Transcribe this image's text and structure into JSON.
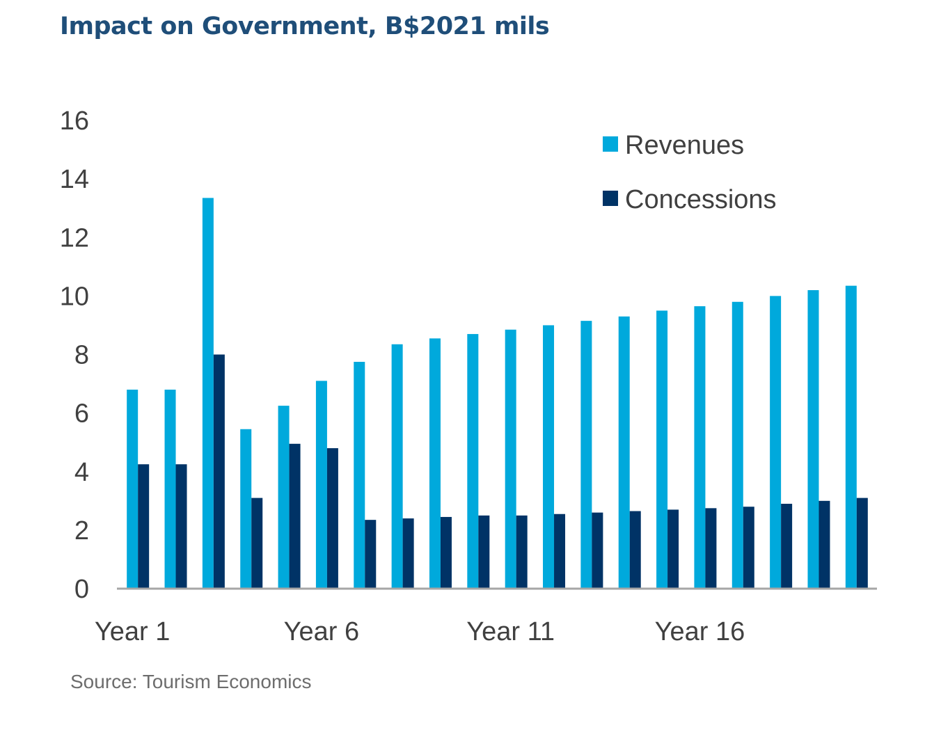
{
  "chart_data": {
    "type": "bar",
    "title": "Impact on Government, B$2021 mils",
    "source": "Source: Tourism Economics",
    "xlabel": "",
    "ylabel": "",
    "ylim": [
      0,
      16
    ],
    "yticks": [
      0,
      2,
      4,
      6,
      8,
      10,
      12,
      14,
      16
    ],
    "ytick_labels": [
      "0",
      "2",
      "4",
      "6",
      "8",
      "10",
      "12",
      "14",
      "16"
    ],
    "grid": false,
    "legend_position": "top-right",
    "categories": [
      "Year 1",
      "Year 2",
      "Year 3",
      "Year 4",
      "Year 5",
      "Year 6",
      "Year 7",
      "Year 8",
      "Year 9",
      "Year 10",
      "Year 11",
      "Year 12",
      "Year 13",
      "Year 14",
      "Year 15",
      "Year 16",
      "Year 17",
      "Year 18",
      "Year 19",
      "Year 20"
    ],
    "xtick_labels": [
      {
        "index": 0,
        "label": "Year 1"
      },
      {
        "index": 5,
        "label": "Year 6"
      },
      {
        "index": 10,
        "label": "Year 11"
      },
      {
        "index": 15,
        "label": "Year 16"
      }
    ],
    "series": [
      {
        "name": "Revenues",
        "color": "#00a9dc",
        "values": [
          6.8,
          6.8,
          13.35,
          5.45,
          6.25,
          7.1,
          7.75,
          8.35,
          8.55,
          8.7,
          8.85,
          9.0,
          9.15,
          9.3,
          9.5,
          9.65,
          9.8,
          10.0,
          10.2,
          10.35
        ]
      },
      {
        "name": "Concessions",
        "color": "#003366",
        "values": [
          4.25,
          4.25,
          8.0,
          3.1,
          4.95,
          4.8,
          2.35,
          2.4,
          2.45,
          2.5,
          2.5,
          2.55,
          2.6,
          2.65,
          2.7,
          2.75,
          2.8,
          2.9,
          3.0,
          3.1
        ]
      }
    ]
  }
}
